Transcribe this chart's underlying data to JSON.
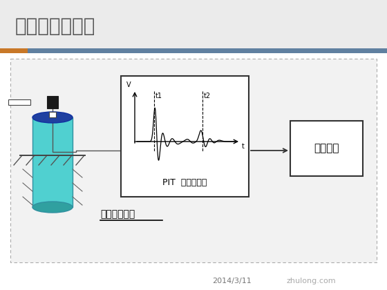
{
  "title": "现场检测流通图",
  "title_fontsize": 20,
  "bg_color": "#ffffff",
  "date_text": "2014/3/11",
  "watermark_text": "zhulong.com",
  "pit_label": "PIT  基桩测试仪",
  "sensor_label": "加速度传感器",
  "output_label": "输出设备",
  "t1_label": "t1",
  "t2_label": "t2",
  "v_label": "V",
  "t_axis_label": "t",
  "orange_bar": "#c87828",
  "blue_bar": "#6080a0",
  "title_color": "#555555",
  "content_bg": "#f2f2f2",
  "content_border": "#aaaaaa",
  "cyl_fill": "#50d0d0",
  "cyl_cap": "#2040a0",
  "pit_box_border": "#333333",
  "out_box_border": "#333333"
}
